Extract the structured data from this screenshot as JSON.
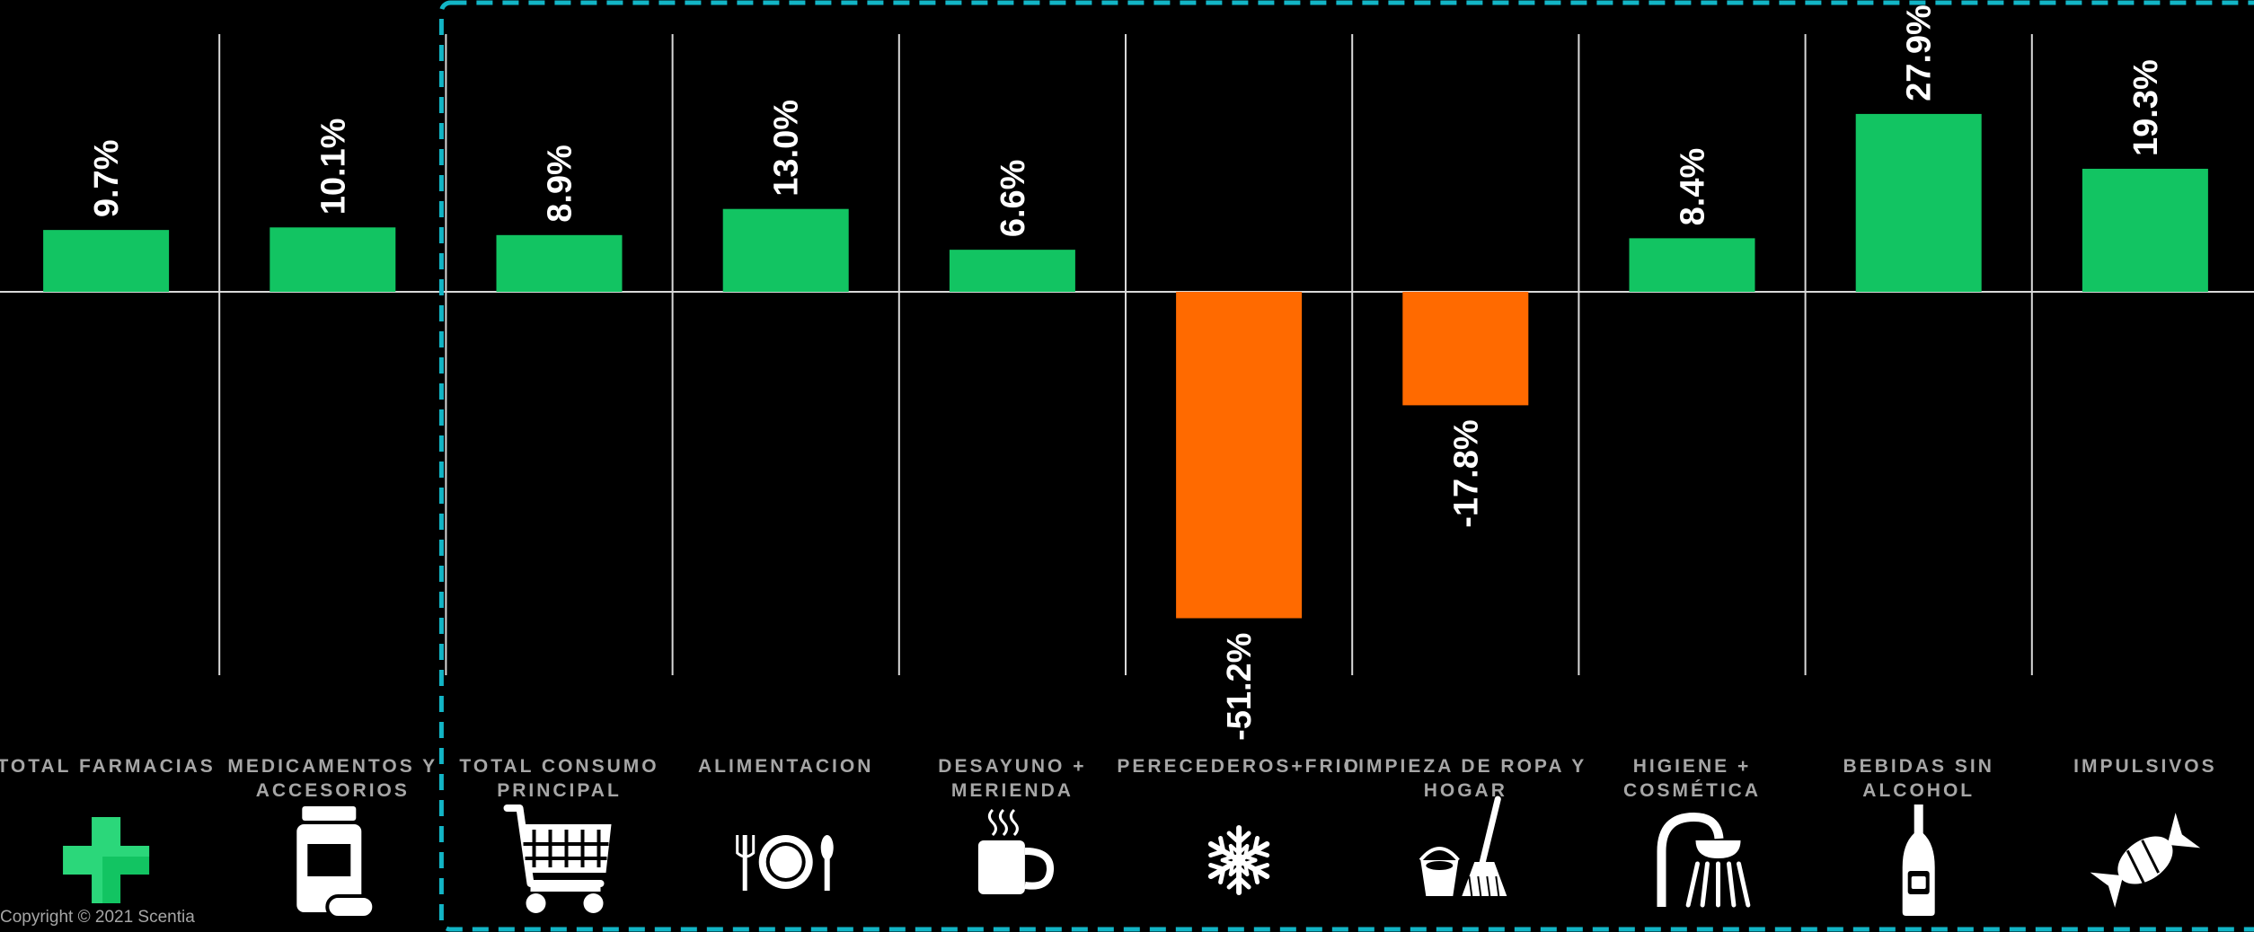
{
  "copyright": "Copyright © 2021 Scentia",
  "colors": {
    "positive": "#12c462",
    "negative": "#ff6a00",
    "background": "#000000",
    "divider": "#d9d9d9",
    "highlight_border": "#12b5c6",
    "label": "#a6a6a6"
  },
  "chart_data": {
    "type": "bar",
    "categories": [
      {
        "lines": [
          "TOTAL FARMACIAS"
        ],
        "icon": "pharmacy-cross-icon"
      },
      {
        "lines": [
          "MEDICAMENTOS Y",
          "ACCESORIOS"
        ],
        "icon": "medicine-bottle-icon"
      },
      {
        "lines": [
          "TOTAL CONSUMO",
          "PRINCIPAL"
        ],
        "icon": "shopping-cart-icon"
      },
      {
        "lines": [
          "ALIMENTACION"
        ],
        "icon": "plate-cutlery-icon"
      },
      {
        "lines": [
          "DESAYUNO +",
          "MERIENDA"
        ],
        "icon": "coffee-mug-icon"
      },
      {
        "lines": [
          "PERECEDEROS+FRIO"
        ],
        "icon": "snowflake-icon"
      },
      {
        "lines": [
          "LIMPIEZA DE ROPA Y",
          "HOGAR"
        ],
        "icon": "bucket-broom-icon"
      },
      {
        "lines": [
          "HIGIENE +",
          "COSMÉTICA"
        ],
        "icon": "shower-icon"
      },
      {
        "lines": [
          "BEBIDAS SIN",
          "ALCOHOL"
        ],
        "icon": "bottle-icon"
      },
      {
        "lines": [
          "IMPULSIVOS"
        ],
        "icon": "candy-icon"
      }
    ],
    "values": [
      9.7,
      10.1,
      8.9,
      13.0,
      6.6,
      -51.2,
      -17.8,
      8.4,
      27.9,
      19.3
    ],
    "value_labels": [
      "9.7%",
      "10.1%",
      "8.9%",
      "13.0%",
      "6.6%",
      "-51.2%",
      "-17.8%",
      "8.4%",
      "27.9%",
      "19.3%"
    ],
    "highlighted_group": {
      "from_index": 2,
      "to_index": 9
    }
  }
}
